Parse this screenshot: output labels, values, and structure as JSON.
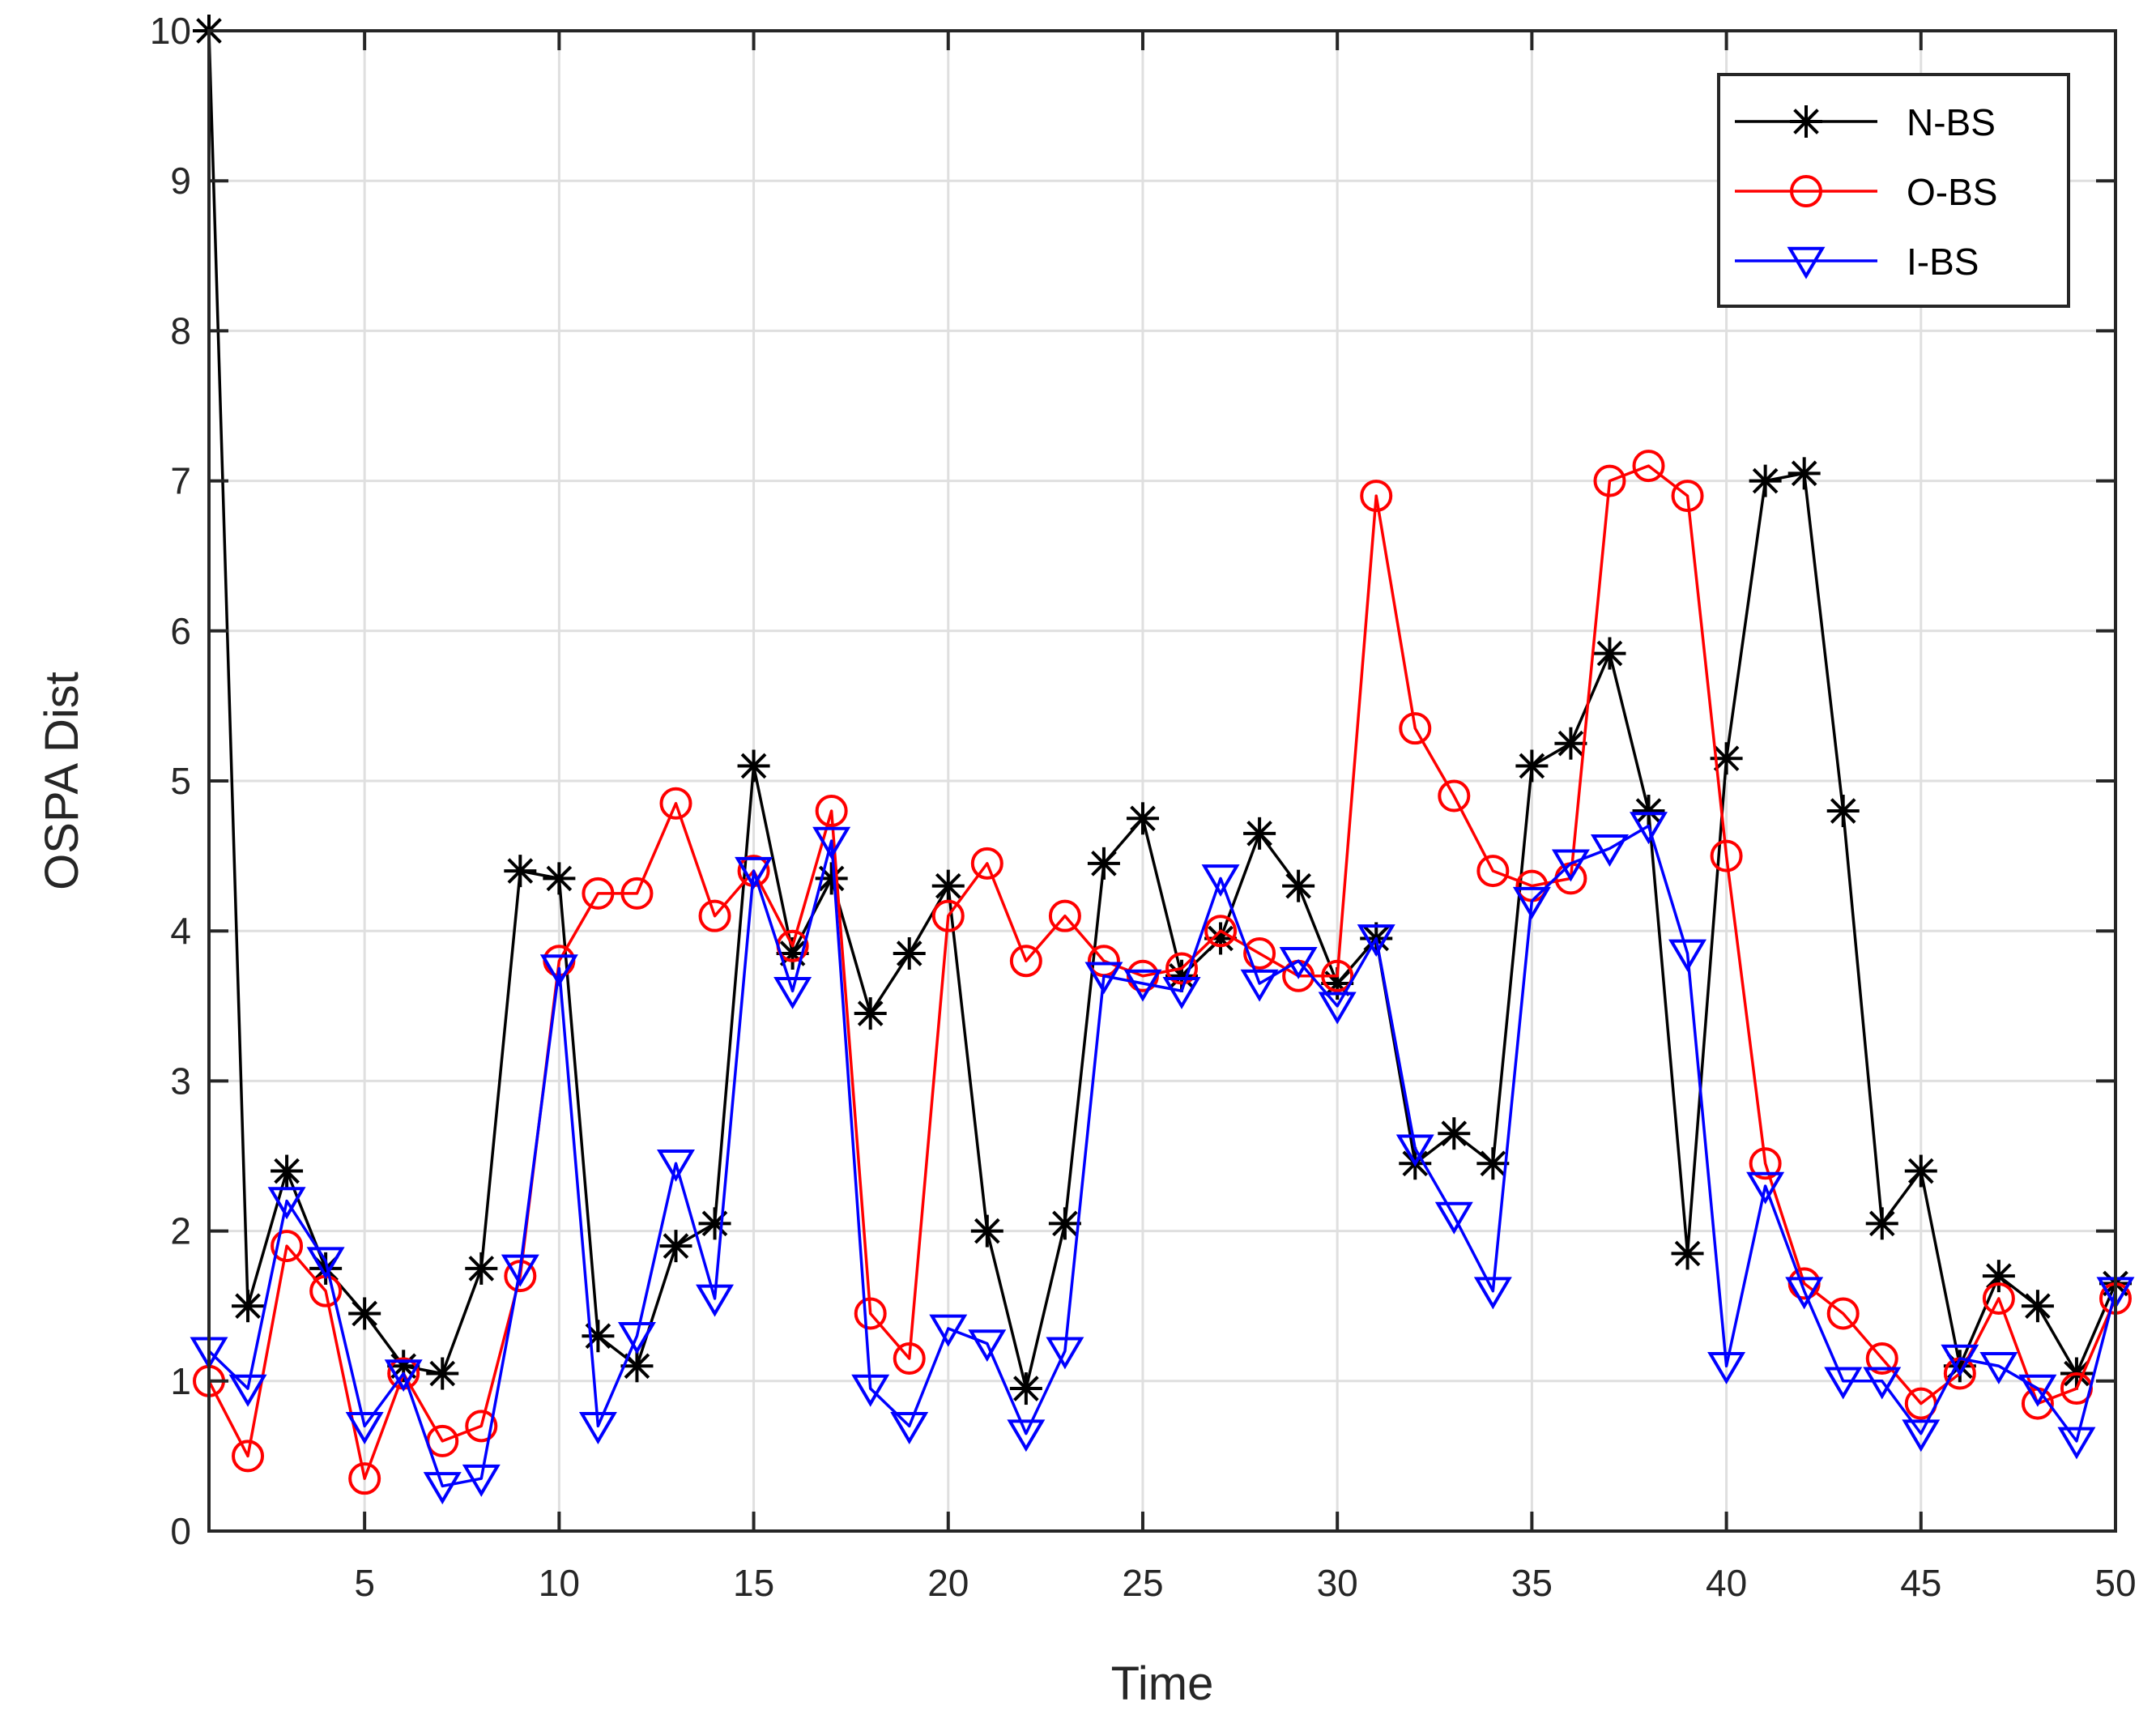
{
  "chart_data": {
    "type": "line",
    "title": "",
    "xlabel": "Time",
    "ylabel": "OSPA Dist",
    "xlim": [
      1,
      50
    ],
    "ylim": [
      0,
      10
    ],
    "xticks": [
      5,
      10,
      15,
      20,
      25,
      30,
      35,
      40,
      45,
      50
    ],
    "yticks": [
      0,
      1,
      2,
      3,
      4,
      5,
      6,
      7,
      8,
      9,
      10
    ],
    "grid": true,
    "legend_position": "top-right",
    "x": [
      1,
      2,
      3,
      4,
      5,
      6,
      7,
      8,
      9,
      10,
      11,
      12,
      13,
      14,
      15,
      16,
      17,
      18,
      19,
      20,
      21,
      22,
      23,
      24,
      25,
      26,
      27,
      28,
      29,
      30,
      31,
      32,
      33,
      34,
      35,
      36,
      37,
      38,
      39,
      40,
      41,
      42,
      43,
      44,
      45,
      46,
      47,
      48,
      49,
      50
    ],
    "series": [
      {
        "name": "N-BS",
        "color": "#000000",
        "marker": "asterisk",
        "values": [
          10.0,
          1.5,
          2.4,
          1.75,
          1.45,
          1.1,
          1.05,
          1.75,
          4.4,
          4.35,
          1.3,
          1.1,
          1.9,
          2.05,
          5.1,
          3.85,
          4.35,
          3.45,
          3.85,
          4.3,
          2.0,
          0.95,
          2.05,
          4.45,
          4.75,
          3.7,
          3.95,
          4.65,
          4.3,
          3.65,
          3.95,
          2.45,
          2.65,
          2.45,
          5.1,
          5.25,
          5.85,
          4.8,
          1.85,
          5.15,
          7.0,
          7.05,
          4.8,
          2.05,
          2.4,
          1.1,
          1.7,
          1.5,
          1.05,
          1.65
        ]
      },
      {
        "name": "O-BS",
        "color": "#ff0000",
        "marker": "circle",
        "values": [
          1.0,
          0.5,
          1.9,
          1.6,
          0.35,
          1.05,
          0.6,
          0.7,
          1.7,
          3.8,
          4.25,
          4.25,
          4.85,
          4.1,
          4.4,
          3.9,
          4.8,
          1.45,
          1.15,
          4.1,
          4.45,
          3.8,
          4.1,
          3.8,
          3.7,
          3.75,
          4.0,
          3.85,
          3.7,
          3.7,
          6.9,
          5.35,
          4.9,
          4.4,
          4.3,
          4.35,
          7.0,
          7.1,
          6.9,
          4.5,
          2.45,
          1.65,
          1.45,
          1.15,
          0.85,
          1.05,
          1.55,
          0.85,
          0.95,
          1.55
        ]
      },
      {
        "name": "I-BS",
        "color": "#0000ff",
        "marker": "triangle-down",
        "values": [
          1.2,
          0.95,
          2.2,
          1.8,
          0.7,
          1.05,
          0.3,
          0.35,
          1.75,
          3.75,
          0.7,
          1.3,
          2.45,
          1.55,
          4.4,
          3.6,
          4.6,
          0.95,
          0.7,
          1.35,
          1.25,
          0.65,
          1.2,
          3.7,
          3.65,
          3.6,
          4.35,
          3.65,
          3.8,
          3.5,
          3.95,
          2.55,
          2.1,
          1.6,
          4.2,
          4.45,
          4.55,
          4.7,
          3.85,
          1.1,
          2.3,
          1.6,
          1.0,
          1.0,
          0.65,
          1.15,
          1.1,
          0.95,
          0.6,
          1.6
        ]
      }
    ]
  }
}
